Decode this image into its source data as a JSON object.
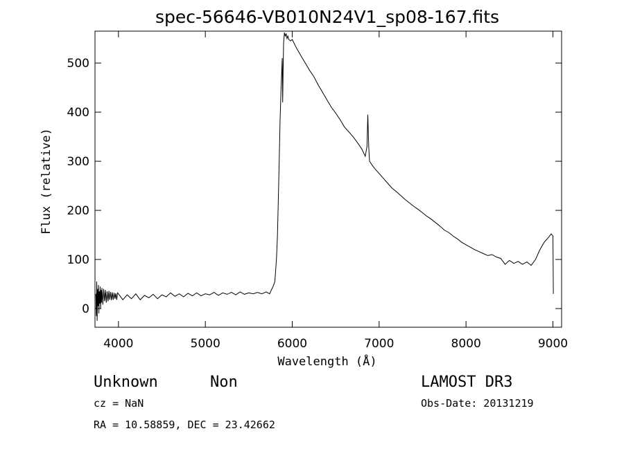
{
  "chart_data": {
    "type": "line",
    "title": "spec-56646-VB010N24V1_sp08-167.fits",
    "xlabel": "Wavelength (Å)",
    "ylabel": "Flux (relative)",
    "xlim": [
      3730,
      9100
    ],
    "ylim": [
      -38,
      565
    ],
    "x_ticks": [
      4000,
      5000,
      6000,
      7000,
      8000,
      9000
    ],
    "y_ticks": [
      0,
      100,
      200,
      300,
      400,
      500
    ],
    "grid": false,
    "line_color": "#000000",
    "series": [
      {
        "points": [
          [
            3740,
            30
          ],
          [
            3745,
            -15
          ],
          [
            3750,
            55
          ],
          [
            3755,
            -25
          ],
          [
            3760,
            40
          ],
          [
            3765,
            5
          ],
          [
            3770,
            48
          ],
          [
            3775,
            -10
          ],
          [
            3780,
            35
          ],
          [
            3785,
            10
          ],
          [
            3790,
            45
          ],
          [
            3795,
            0
          ],
          [
            3800,
            38
          ],
          [
            3805,
            12
          ],
          [
            3810,
            42
          ],
          [
            3820,
            8
          ],
          [
            3830,
            40
          ],
          [
            3840,
            15
          ],
          [
            3850,
            38
          ],
          [
            3860,
            12
          ],
          [
            3870,
            35
          ],
          [
            3880,
            15
          ],
          [
            3890,
            36
          ],
          [
            3900,
            18
          ],
          [
            3910,
            34
          ],
          [
            3920,
            17
          ],
          [
            3930,
            33
          ],
          [
            3940,
            18
          ],
          [
            3950,
            32
          ],
          [
            3960,
            20
          ],
          [
            3970,
            31
          ],
          [
            3980,
            18
          ],
          [
            3990,
            32
          ],
          [
            4000,
            30
          ],
          [
            4050,
            18
          ],
          [
            4100,
            28
          ],
          [
            4150,
            20
          ],
          [
            4200,
            30
          ],
          [
            4250,
            18
          ],
          [
            4300,
            27
          ],
          [
            4350,
            22
          ],
          [
            4400,
            29
          ],
          [
            4450,
            20
          ],
          [
            4500,
            28
          ],
          [
            4550,
            24
          ],
          [
            4600,
            32
          ],
          [
            4650,
            25
          ],
          [
            4700,
            30
          ],
          [
            4750,
            24
          ],
          [
            4800,
            31
          ],
          [
            4850,
            26
          ],
          [
            4900,
            32
          ],
          [
            4950,
            26
          ],
          [
            5000,
            30
          ],
          [
            5050,
            28
          ],
          [
            5100,
            33
          ],
          [
            5150,
            27
          ],
          [
            5200,
            32
          ],
          [
            5250,
            29
          ],
          [
            5300,
            33
          ],
          [
            5350,
            28
          ],
          [
            5400,
            34
          ],
          [
            5450,
            29
          ],
          [
            5500,
            32
          ],
          [
            5550,
            30
          ],
          [
            5600,
            33
          ],
          [
            5650,
            30
          ],
          [
            5700,
            34
          ],
          [
            5740,
            30
          ],
          [
            5760,
            38
          ],
          [
            5780,
            45
          ],
          [
            5800,
            55
          ],
          [
            5810,
            80
          ],
          [
            5820,
            105
          ],
          [
            5830,
            150
          ],
          [
            5840,
            220
          ],
          [
            5850,
            300
          ],
          [
            5860,
            380
          ],
          [
            5870,
            440
          ],
          [
            5880,
            490
          ],
          [
            5885,
            510
          ],
          [
            5890,
            420
          ],
          [
            5895,
            480
          ],
          [
            5900,
            540
          ],
          [
            5910,
            562
          ],
          [
            5920,
            555
          ],
          [
            5930,
            560
          ],
          [
            5940,
            550
          ],
          [
            5950,
            555
          ],
          [
            5960,
            548
          ],
          [
            5980,
            545
          ],
          [
            6000,
            548
          ],
          [
            6050,
            530
          ],
          [
            6100,
            515
          ],
          [
            6150,
            500
          ],
          [
            6200,
            485
          ],
          [
            6250,
            472
          ],
          [
            6300,
            455
          ],
          [
            6350,
            440
          ],
          [
            6400,
            425
          ],
          [
            6450,
            410
          ],
          [
            6500,
            398
          ],
          [
            6550,
            385
          ],
          [
            6600,
            370
          ],
          [
            6650,
            360
          ],
          [
            6700,
            350
          ],
          [
            6750,
            338
          ],
          [
            6800,
            325
          ],
          [
            6840,
            310
          ],
          [
            6860,
            330
          ],
          [
            6870,
            395
          ],
          [
            6880,
            330
          ],
          [
            6890,
            300
          ],
          [
            6920,
            292
          ],
          [
            6950,
            285
          ],
          [
            7000,
            275
          ],
          [
            7050,
            265
          ],
          [
            7100,
            255
          ],
          [
            7150,
            245
          ],
          [
            7200,
            238
          ],
          [
            7250,
            230
          ],
          [
            7300,
            222
          ],
          [
            7350,
            215
          ],
          [
            7400,
            208
          ],
          [
            7450,
            202
          ],
          [
            7500,
            195
          ],
          [
            7550,
            188
          ],
          [
            7600,
            182
          ],
          [
            7650,
            175
          ],
          [
            7700,
            168
          ],
          [
            7750,
            160
          ],
          [
            7800,
            155
          ],
          [
            7850,
            148
          ],
          [
            7900,
            142
          ],
          [
            7950,
            135
          ],
          [
            8000,
            130
          ],
          [
            8050,
            125
          ],
          [
            8100,
            120
          ],
          [
            8150,
            116
          ],
          [
            8200,
            112
          ],
          [
            8250,
            108
          ],
          [
            8300,
            110
          ],
          [
            8350,
            105
          ],
          [
            8400,
            102
          ],
          [
            8450,
            90
          ],
          [
            8500,
            98
          ],
          [
            8550,
            92
          ],
          [
            8600,
            96
          ],
          [
            8650,
            90
          ],
          [
            8700,
            95
          ],
          [
            8750,
            88
          ],
          [
            8800,
            100
          ],
          [
            8850,
            120
          ],
          [
            8900,
            135
          ],
          [
            8950,
            145
          ],
          [
            8980,
            152
          ],
          [
            9000,
            148
          ],
          [
            9005,
            30
          ]
        ]
      }
    ]
  },
  "labels": {
    "object_class": "Unknown",
    "subclass": "Non",
    "redshift": "cz = NaN",
    "coordinates": "RA =  10.58859, DEC =  23.42662",
    "survey": "LAMOST DR3",
    "obs_date": "Obs-Date: 20131219"
  }
}
